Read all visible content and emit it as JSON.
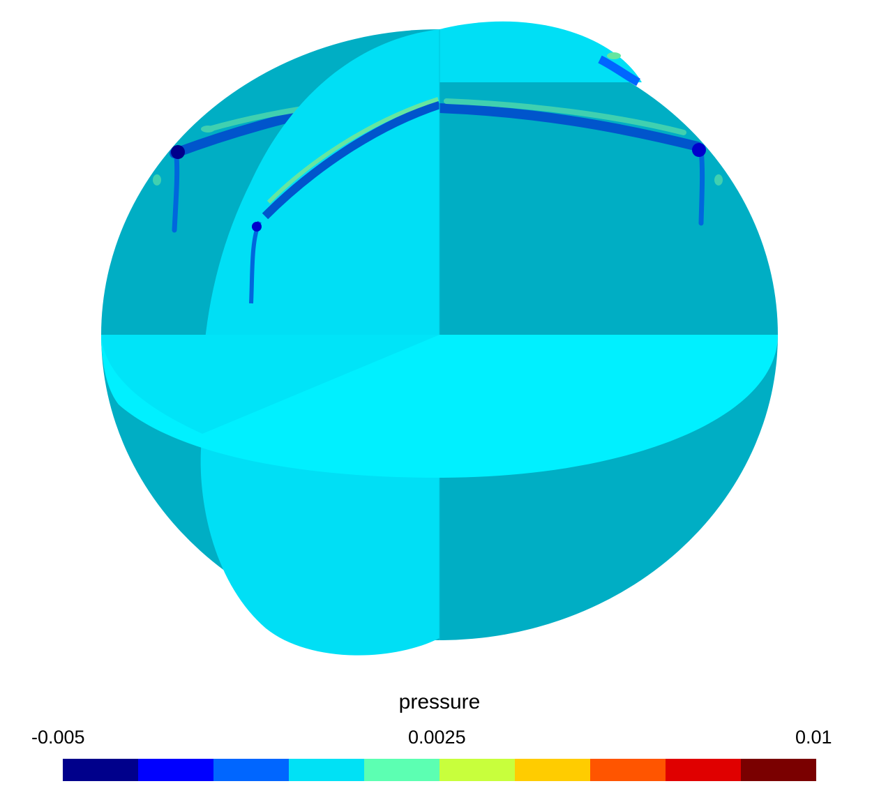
{
  "legend": {
    "title": "pressure",
    "ticks": {
      "min": "-0.005",
      "mid": "0.0025",
      "max": "0.01"
    },
    "range": [
      -0.005,
      0.01
    ],
    "bins": [
      {
        "color": "#00008b"
      },
      {
        "color": "#0000ff"
      },
      {
        "color": "#0066ff"
      },
      {
        "color": "#00e1f5"
      },
      {
        "color": "#5cffb2"
      },
      {
        "color": "#c8ff3c"
      },
      {
        "color": "#ffcc00"
      },
      {
        "color": "#ff5500"
      },
      {
        "color": "#e00000"
      },
      {
        "color": "#7a0000"
      }
    ]
  },
  "render_colors": {
    "shell": "#00aec4",
    "slice_vertical": "#00dff5",
    "slice_horizontal": "#00f0ff",
    "wave_dark": "#0055cc",
    "wave_mid": "#0077ee",
    "wave_light": "#40d0b0",
    "wave_green": "#66e6a0"
  }
}
